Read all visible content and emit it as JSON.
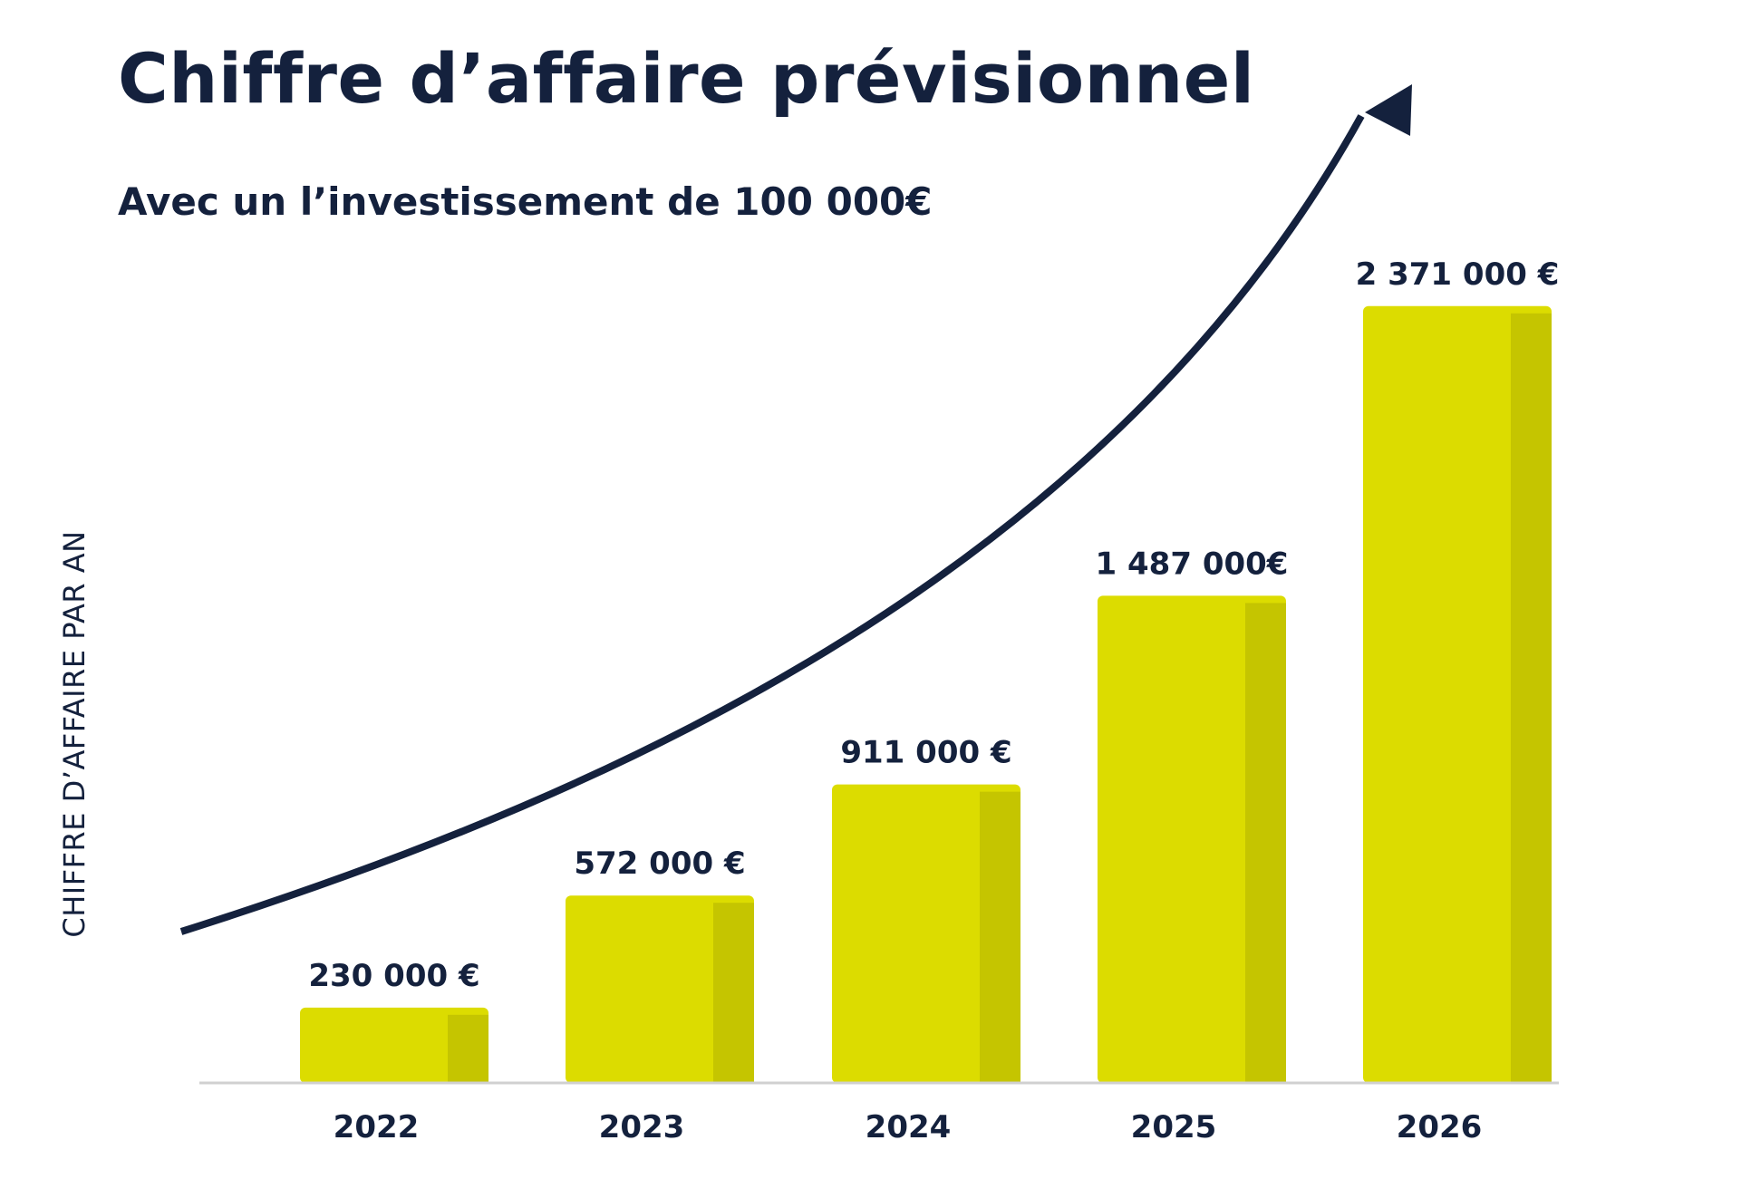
{
  "chart_data": {
    "type": "bar",
    "title": "Chiffre d’affaire prévisionnel",
    "subtitle": "Avec un l’investissement de 100 000€",
    "ylabel": "CHIFFRE D’AFFAIRE PAR AN",
    "xlabel": "",
    "categories": [
      "2022",
      "2023",
      "2024",
      "2025",
      "2026"
    ],
    "values": [
      230000,
      572000,
      911000,
      1487000,
      2371000
    ],
    "value_labels": [
      "230 000 €",
      "572 000 €",
      "911 000 €",
      "1 487 000€",
      "2 371 000 €"
    ],
    "ylim": [
      0,
      2600000
    ],
    "grid": false,
    "trend_arrow": true
  },
  "colors": {
    "bar_front": "#dcdc00",
    "bar_side": "#c5c500",
    "text": "#14213d",
    "arrow": "#14213d",
    "baseline": "#d0d0d0"
  }
}
